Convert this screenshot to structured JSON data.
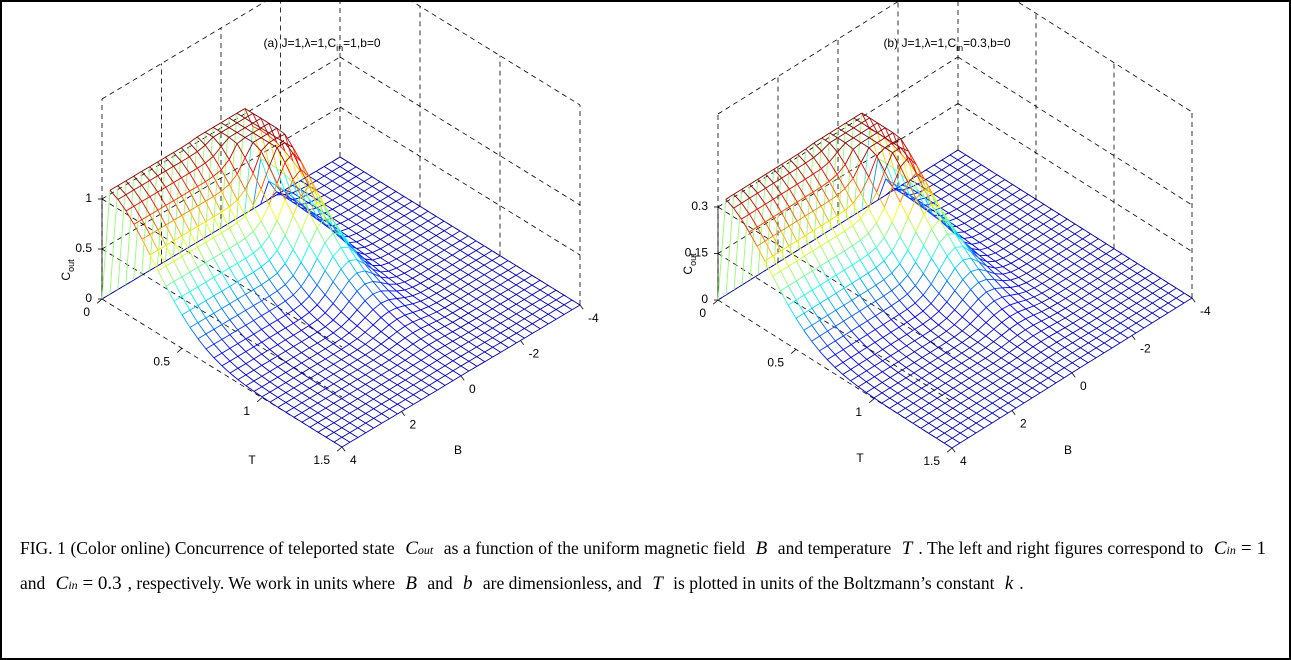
{
  "figures": [
    {
      "title": {
        "prefix": "(a)  J=1,λ=1,C",
        "sub": "in",
        "suffix": "=1,b=0"
      },
      "zlabel": {
        "main": "C",
        "sub": "out"
      },
      "xlabel": "B",
      "ylabel": "T",
      "bticks": [
        4,
        2,
        0,
        -2,
        -4
      ],
      "tticks": [
        0,
        0.5,
        1,
        1.5
      ],
      "zticks": [
        0,
        0.5,
        1
      ],
      "zlim": [
        0,
        2
      ]
    },
    {
      "title": {
        "prefix": "(b)  J=1,λ=1,C",
        "sub": "in",
        "suffix": "=0.3,b=0"
      },
      "zlabel": {
        "main": "C",
        "sub": "out"
      },
      "xlabel": "B",
      "ylabel": "T",
      "bticks": [
        4,
        2,
        0,
        -2,
        -4
      ],
      "tticks": [
        0,
        0.5,
        1,
        1.5
      ],
      "zticks": [
        0,
        0.15,
        0.3
      ],
      "zlim": [
        0,
        0.6
      ]
    }
  ],
  "caption": [
    {
      "text": "FIG. 1 (Color online) Concurrence of teleported state "
    },
    {
      "math": "C",
      "sub": "out"
    },
    {
      "text": " as a function of the uniform magnetic field "
    },
    {
      "math": "B"
    },
    {
      "text": " and temperature "
    },
    {
      "math": "T"
    },
    {
      "text": ". The left and right figures correspond to "
    },
    {
      "math": "C",
      "sub": "in",
      "after": " = 1"
    },
    {
      "text": " and "
    },
    {
      "math": "C",
      "sub": "in",
      "after": " = 0.3"
    },
    {
      "text": ", respectively. We work in units where "
    },
    {
      "math": "B"
    },
    {
      "text": " and "
    },
    {
      "math": "b"
    },
    {
      "text": " are dimensionless, and "
    },
    {
      "math": "T"
    },
    {
      "text": " is plotted in units of the Boltzmann’s constant "
    },
    {
      "math": "k"
    },
    {
      "text": "."
    }
  ]
}
